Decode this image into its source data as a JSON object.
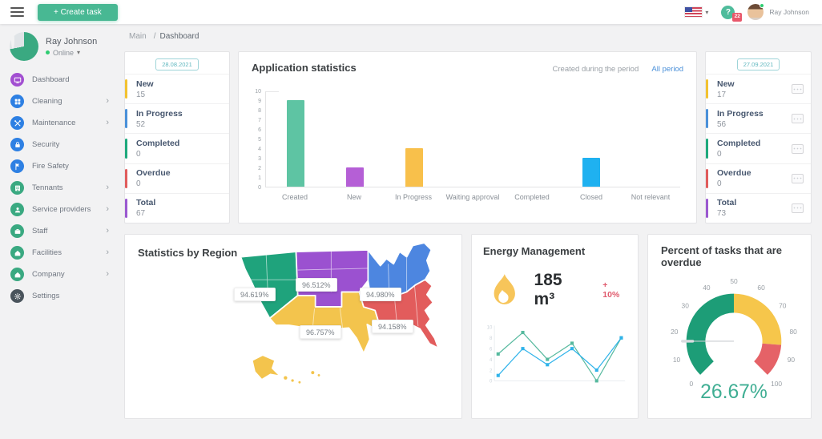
{
  "topbar": {
    "create_task_label": "+ Create task",
    "help_label": "?",
    "help_badge": "22",
    "user_name": "Ray Johnson"
  },
  "sidebar": {
    "user": {
      "name": "Ray Johnson",
      "status": "Online"
    },
    "items": [
      {
        "label": "Dashboard",
        "icon": "dashboard-icon",
        "color": "#a24fd1",
        "chevron": false
      },
      {
        "label": "Cleaning",
        "icon": "cleaning-grid-icon",
        "color": "#2e80e3",
        "chevron": true
      },
      {
        "label": "Maintenance",
        "icon": "tools-icon",
        "color": "#2e80e3",
        "chevron": true
      },
      {
        "label": "Security",
        "icon": "lock-icon",
        "color": "#2e80e3",
        "chevron": false
      },
      {
        "label": "Fire Safety",
        "icon": "flag-icon",
        "color": "#2e80e3",
        "chevron": false
      },
      {
        "label": "Tennants",
        "icon": "building-icon",
        "color": "#3aa981",
        "chevron": true
      },
      {
        "label": "Service providers",
        "icon": "person-icon",
        "color": "#3aa981",
        "chevron": true
      },
      {
        "label": "Staff",
        "icon": "briefcase-icon",
        "color": "#3aa981",
        "chevron": true
      },
      {
        "label": "Facilities",
        "icon": "home-icon",
        "color": "#3aa981",
        "chevron": true
      },
      {
        "label": "Company",
        "icon": "home-icon",
        "color": "#3aa981",
        "chevron": true
      },
      {
        "label": "Settings",
        "icon": "gear-icon",
        "color": "#4a545c",
        "chevron": false
      }
    ]
  },
  "breadcrumb": {
    "root": "Main",
    "separator": "/",
    "current": "Dashboard"
  },
  "stat_card_left": {
    "date": "28.08.2021",
    "has_checkboxes": false,
    "rows": [
      {
        "label": "New",
        "value": "15",
        "color": "#f2c230"
      },
      {
        "label": "In Progress",
        "value": "52",
        "color": "#4a90d9"
      },
      {
        "label": "Completed",
        "value": "0",
        "color": "#1ea97c"
      },
      {
        "label": "Overdue",
        "value": "0",
        "color": "#e05c5c"
      },
      {
        "label": "Total",
        "value": "67",
        "color": "#9b59d0"
      }
    ]
  },
  "stat_card_right": {
    "date": "27.09.2021",
    "has_checkboxes": true,
    "rows": [
      {
        "label": "New",
        "value": "17",
        "color": "#f2c230"
      },
      {
        "label": "In Progress",
        "value": "56",
        "color": "#4a90d9"
      },
      {
        "label": "Completed",
        "value": "0",
        "color": "#1ea97c"
      },
      {
        "label": "Overdue",
        "value": "0",
        "color": "#e05c5c"
      },
      {
        "label": "Total",
        "value": "73",
        "color": "#9b59d0"
      }
    ]
  },
  "chart_data": [
    {
      "type": "bar",
      "title": "Application statistics",
      "filter_inactive": "Created during the period",
      "filter_active": "All period",
      "categories": [
        "Created",
        "New",
        "In Progress",
        "Waiting approval",
        "Completed",
        "Closed",
        "Not relevant"
      ],
      "values": [
        9,
        2,
        4,
        0,
        0,
        3,
        0
      ],
      "colors": [
        "#5ec4a3",
        "#b55fd6",
        "#f8c04b",
        null,
        null,
        "#1fb1f0",
        null
      ],
      "xlabel": "",
      "ylabel": "",
      "ylim": [
        0,
        10
      ],
      "ytick_step": 1,
      "grid": false,
      "legend": "none"
    },
    {
      "type": "line",
      "title": "Energy Management",
      "value": "185 m³",
      "delta": "+ 10%",
      "x": [
        1,
        2,
        3,
        4,
        5,
        6
      ],
      "yticks": [
        0,
        2,
        4,
        6,
        8,
        10
      ],
      "ylim": [
        0,
        10
      ],
      "series": [
        {
          "name": "consumption-a",
          "color": "#56b99e",
          "values": [
            5,
            9,
            4,
            7,
            0,
            8
          ]
        },
        {
          "name": "consumption-b",
          "color": "#2fb3ea",
          "values": [
            1,
            6,
            3,
            6,
            2,
            8
          ]
        }
      ]
    },
    {
      "type": "gauge",
      "title": "Percent of tasks that are overdue",
      "value_label": "26.67%",
      "value_color": "#3fae93",
      "min": 0,
      "max": 100,
      "ticks": [
        0,
        10,
        20,
        30,
        40,
        50,
        60,
        70,
        80,
        90,
        100
      ],
      "segments": [
        {
          "from": 0,
          "to": 50,
          "color": "#1d9d77"
        },
        {
          "from": 50,
          "to": 85,
          "color": "#f6c64b"
        },
        {
          "from": 85,
          "to": 100,
          "color": "#e56267"
        }
      ]
    }
  ],
  "region_stats": {
    "title": "Statistics by Region",
    "regions": [
      {
        "name": "west",
        "value": "94.619%",
        "color": "#1fa37c"
      },
      {
        "name": "north-central",
        "value": "96.512%",
        "color": "#9b51d0"
      },
      {
        "name": "northeast",
        "value": "94.980%",
        "color": "#4d86e0"
      },
      {
        "name": "south-central",
        "value": "96.757%",
        "color": "#f3c44d"
      },
      {
        "name": "southeast",
        "value": "94.158%",
        "color": "#e25c5c"
      }
    ]
  }
}
